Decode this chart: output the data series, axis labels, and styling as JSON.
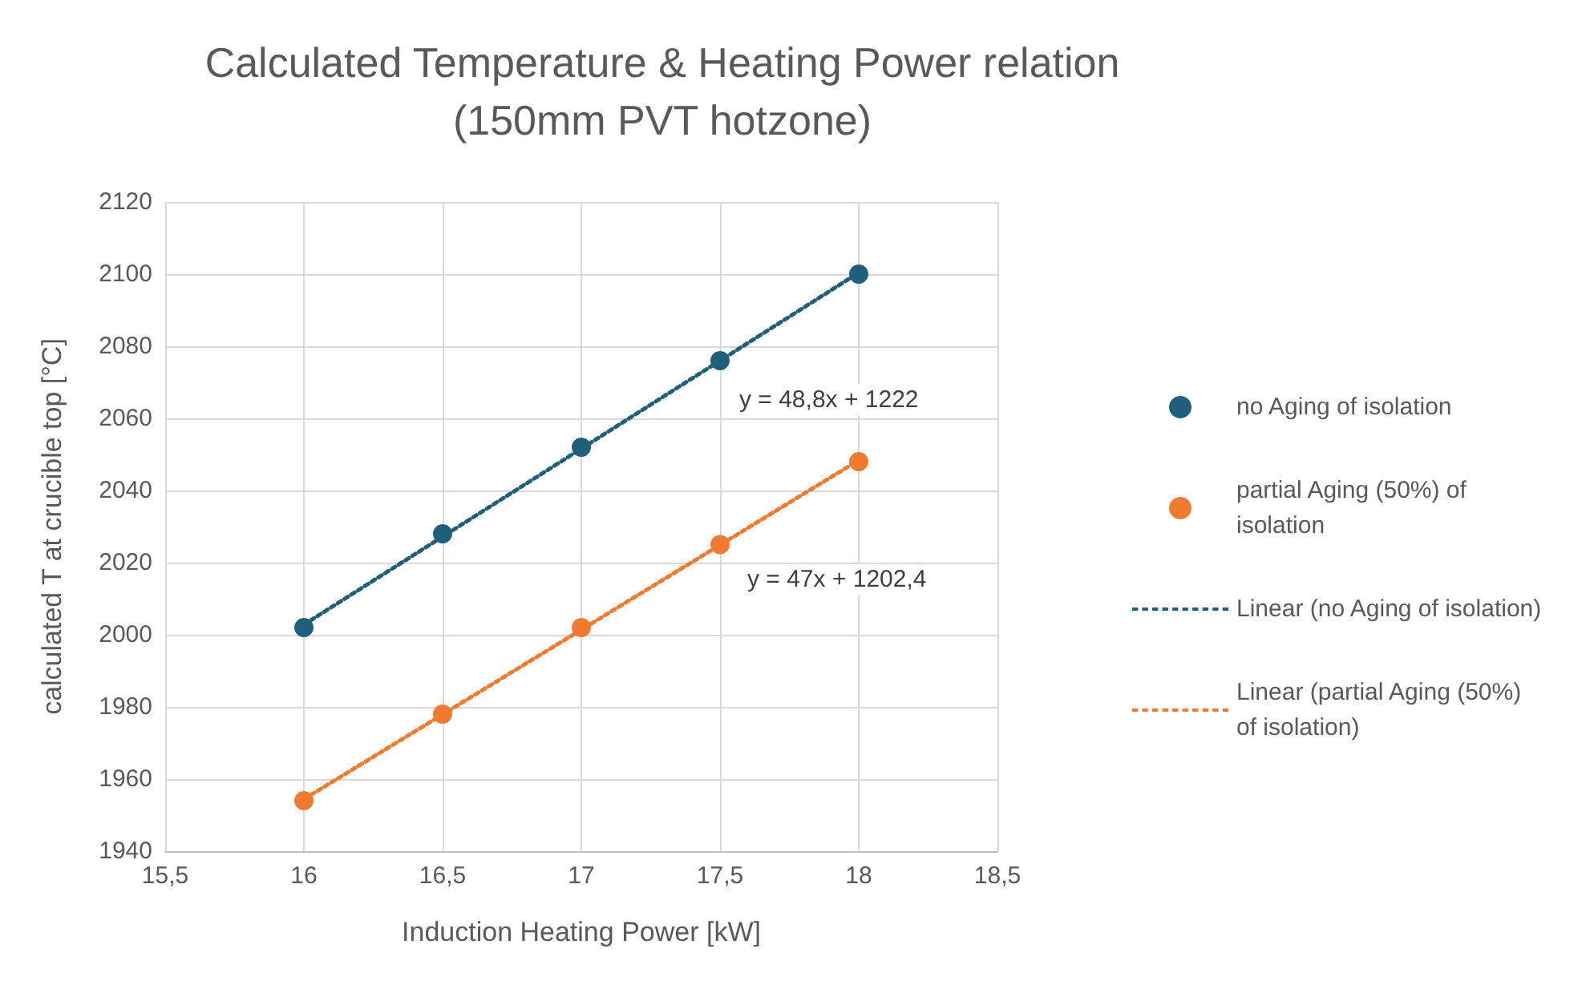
{
  "chart_data": {
    "type": "scatter",
    "title": "Calculated Temperature & Heating Power relation\n(150mm PVT hotzone)",
    "xlabel": "Induction Heating Power [kW]",
    "ylabel": "calculated T at crucible top [°C]",
    "xlim": [
      15.5,
      18.5
    ],
    "xticks": [
      {
        "value": 15.5,
        "label": "15,5"
      },
      16,
      {
        "value": 16.5,
        "label": "16,5"
      },
      17,
      {
        "value": 17.5,
        "label": "17,5"
      },
      18,
      {
        "value": 18.5,
        "label": "18,5"
      }
    ],
    "ylim": [
      1940,
      2120
    ],
    "yticks": [
      1940,
      1960,
      1980,
      2000,
      2020,
      2040,
      2060,
      2080,
      2100,
      2120
    ],
    "grid": true,
    "legend": "right",
    "marker": "circle",
    "line_style": "dotted",
    "series": [
      {
        "name": "no Aging of isolation",
        "color": "#1f5f7a",
        "x": [
          16,
          16.5,
          17,
          17.5,
          18
        ],
        "values": [
          2002,
          2028,
          2052,
          2076,
          2100
        ]
      },
      {
        "name": "partial Aging (50%) of isolation",
        "color": "#f07a30",
        "x": [
          16,
          16.5,
          17,
          17.5,
          18
        ],
        "values": [
          1954,
          1978,
          2002,
          2025,
          2048
        ]
      },
      {
        "name": "Linear (no Aging of isolation)",
        "type": "line",
        "marker": "none",
        "color": "#1f5f7a",
        "x": [
          16,
          18
        ],
        "values": [
          2002.8,
          2100.4
        ]
      },
      {
        "name": "Linear (partial Aging (50%) of isolation)",
        "type": "line",
        "marker": "none",
        "color": "#f07a30",
        "x": [
          16,
          18
        ],
        "values": [
          1954.4,
          2048.4
        ]
      }
    ],
    "annotations": [
      "y = 48,8x + 1222",
      "y = 47x + 1202,4"
    ]
  }
}
